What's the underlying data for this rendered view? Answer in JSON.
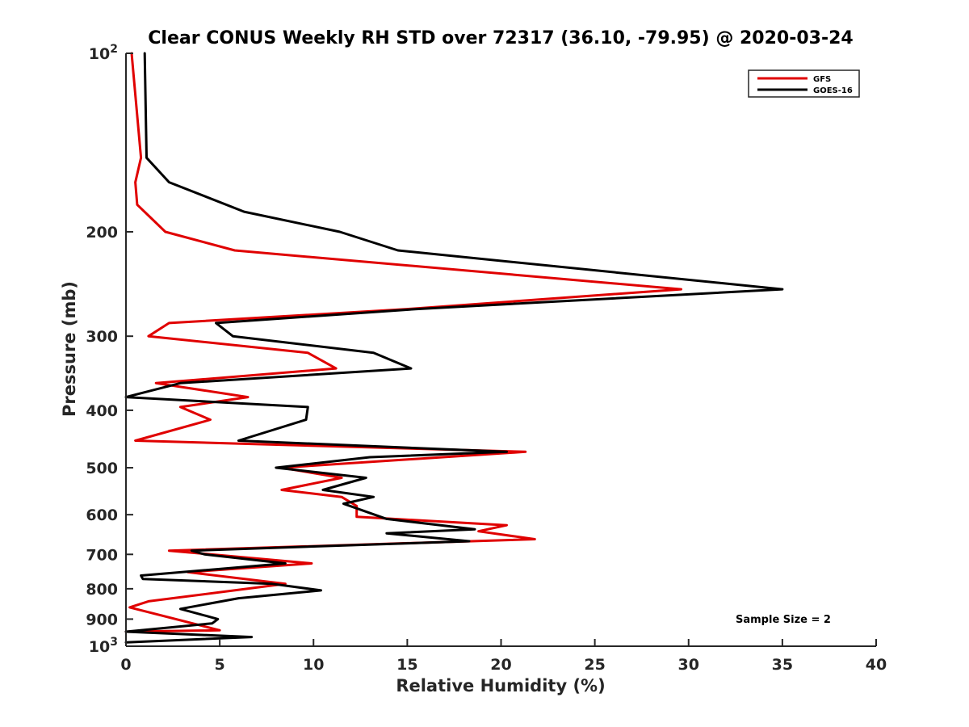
{
  "chart_data": {
    "type": "line",
    "title": "Clear CONUS Weekly RH STD over 72317 (36.10, -79.95) @ 2020-03-24",
    "xlabel": "Relative Humidity (%)",
    "ylabel": "Pressure (mb)",
    "xlim": [
      0,
      40
    ],
    "ylim": [
      100,
      1000
    ],
    "y_scale": "log",
    "y_reversed": true,
    "x_ticks": [
      "0",
      "5",
      "10",
      "15",
      "20",
      "25",
      "30",
      "35",
      "40"
    ],
    "y_ticks": [
      {
        "value": 100,
        "label": "10",
        "sup": "2"
      },
      {
        "value": 200,
        "label": "200"
      },
      {
        "value": 300,
        "label": "300"
      },
      {
        "value": 400,
        "label": "400"
      },
      {
        "value": 500,
        "label": "500"
      },
      {
        "value": 600,
        "label": "600"
      },
      {
        "value": 700,
        "label": "700"
      },
      {
        "value": 800,
        "label": "800"
      },
      {
        "value": 900,
        "label": "900"
      },
      {
        "value": 1000,
        "label": "10",
        "sup": "3"
      }
    ],
    "grid": false,
    "legend_position": "top-right",
    "annotation": "Sample Size = 2",
    "series": [
      {
        "name": "GFS",
        "color": "#e00000",
        "points": [
          [
            0.3,
            100
          ],
          [
            0.8,
            150
          ],
          [
            0.5,
            165
          ],
          [
            0.6,
            180
          ],
          [
            2.1,
            200
          ],
          [
            5.8,
            215
          ],
          [
            29.6,
            250
          ],
          [
            15.0,
            270
          ],
          [
            2.3,
            285
          ],
          [
            1.2,
            300
          ],
          [
            9.7,
            320
          ],
          [
            11.2,
            340
          ],
          [
            1.6,
            360
          ],
          [
            6.5,
            380
          ],
          [
            2.9,
            395
          ],
          [
            4.5,
            415
          ],
          [
            0.5,
            450
          ],
          [
            21.3,
            470
          ],
          [
            8.3,
            500
          ],
          [
            11.5,
            520
          ],
          [
            8.3,
            545
          ],
          [
            11.5,
            560
          ],
          [
            12.3,
            580
          ],
          [
            12.3,
            605
          ],
          [
            20.3,
            625
          ],
          [
            18.8,
            640
          ],
          [
            21.8,
            660
          ],
          [
            2.3,
            690
          ],
          [
            9.9,
            725
          ],
          [
            3.3,
            750
          ],
          [
            8.5,
            785
          ],
          [
            1.2,
            840
          ],
          [
            0.2,
            860
          ],
          [
            5.0,
            940
          ],
          [
            0.0,
            945
          ]
        ]
      },
      {
        "name": "GOES-16",
        "color": "#000000",
        "points": [
          [
            1.0,
            100
          ],
          [
            1.1,
            150
          ],
          [
            2.3,
            165
          ],
          [
            6.3,
            185
          ],
          [
            11.4,
            200
          ],
          [
            14.5,
            215
          ],
          [
            35.0,
            250
          ],
          [
            15.5,
            270
          ],
          [
            4.8,
            285
          ],
          [
            5.7,
            300
          ],
          [
            13.2,
            320
          ],
          [
            15.2,
            340
          ],
          [
            2.9,
            360
          ],
          [
            0.0,
            380
          ],
          [
            9.7,
            395
          ],
          [
            9.6,
            415
          ],
          [
            6.0,
            450
          ],
          [
            20.3,
            470
          ],
          [
            13.0,
            480
          ],
          [
            8.0,
            500
          ],
          [
            12.8,
            520
          ],
          [
            10.5,
            545
          ],
          [
            13.2,
            560
          ],
          [
            11.6,
            575
          ],
          [
            13.9,
            610
          ],
          [
            18.6,
            635
          ],
          [
            13.9,
            645
          ],
          [
            18.3,
            665
          ],
          [
            3.5,
            690
          ],
          [
            4.2,
            700
          ],
          [
            8.5,
            725
          ],
          [
            0.8,
            760
          ],
          [
            0.9,
            770
          ],
          [
            7.8,
            785
          ],
          [
            10.4,
            805
          ],
          [
            6.0,
            830
          ],
          [
            2.9,
            865
          ],
          [
            4.9,
            900
          ],
          [
            4.6,
            915
          ],
          [
            0.0,
            945
          ],
          [
            6.7,
            965
          ],
          [
            0.0,
            985
          ]
        ]
      }
    ]
  }
}
